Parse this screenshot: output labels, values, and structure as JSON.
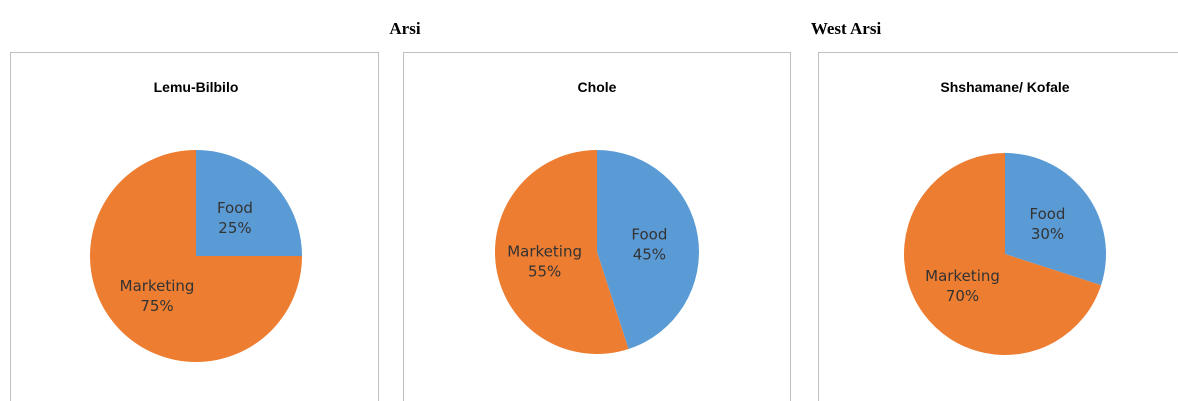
{
  "region_labels": [
    "Arsi",
    "West Arsi"
  ],
  "chart_data": [
    {
      "type": "pie",
      "title": "Lemu-Bilbilo",
      "categories": [
        "Food",
        "Marketing"
      ],
      "values": [
        25,
        75
      ],
      "value_labels": [
        "25%",
        "75%"
      ],
      "colors": [
        "#5b9bd5",
        "#ed7d31"
      ]
    },
    {
      "type": "pie",
      "title": "Chole",
      "categories": [
        "Food",
        "Marketing"
      ],
      "values": [
        45,
        55
      ],
      "value_labels": [
        "45%",
        "55%"
      ],
      "colors": [
        "#5b9bd5",
        "#ed7d31"
      ]
    },
    {
      "type": "pie",
      "title": "Shshamane/ Kofale",
      "categories": [
        "Food",
        "Marketing"
      ],
      "values": [
        30,
        70
      ],
      "value_labels": [
        "30%",
        "70%"
      ],
      "colors": [
        "#5b9bd5",
        "#ed7d31"
      ]
    }
  ]
}
